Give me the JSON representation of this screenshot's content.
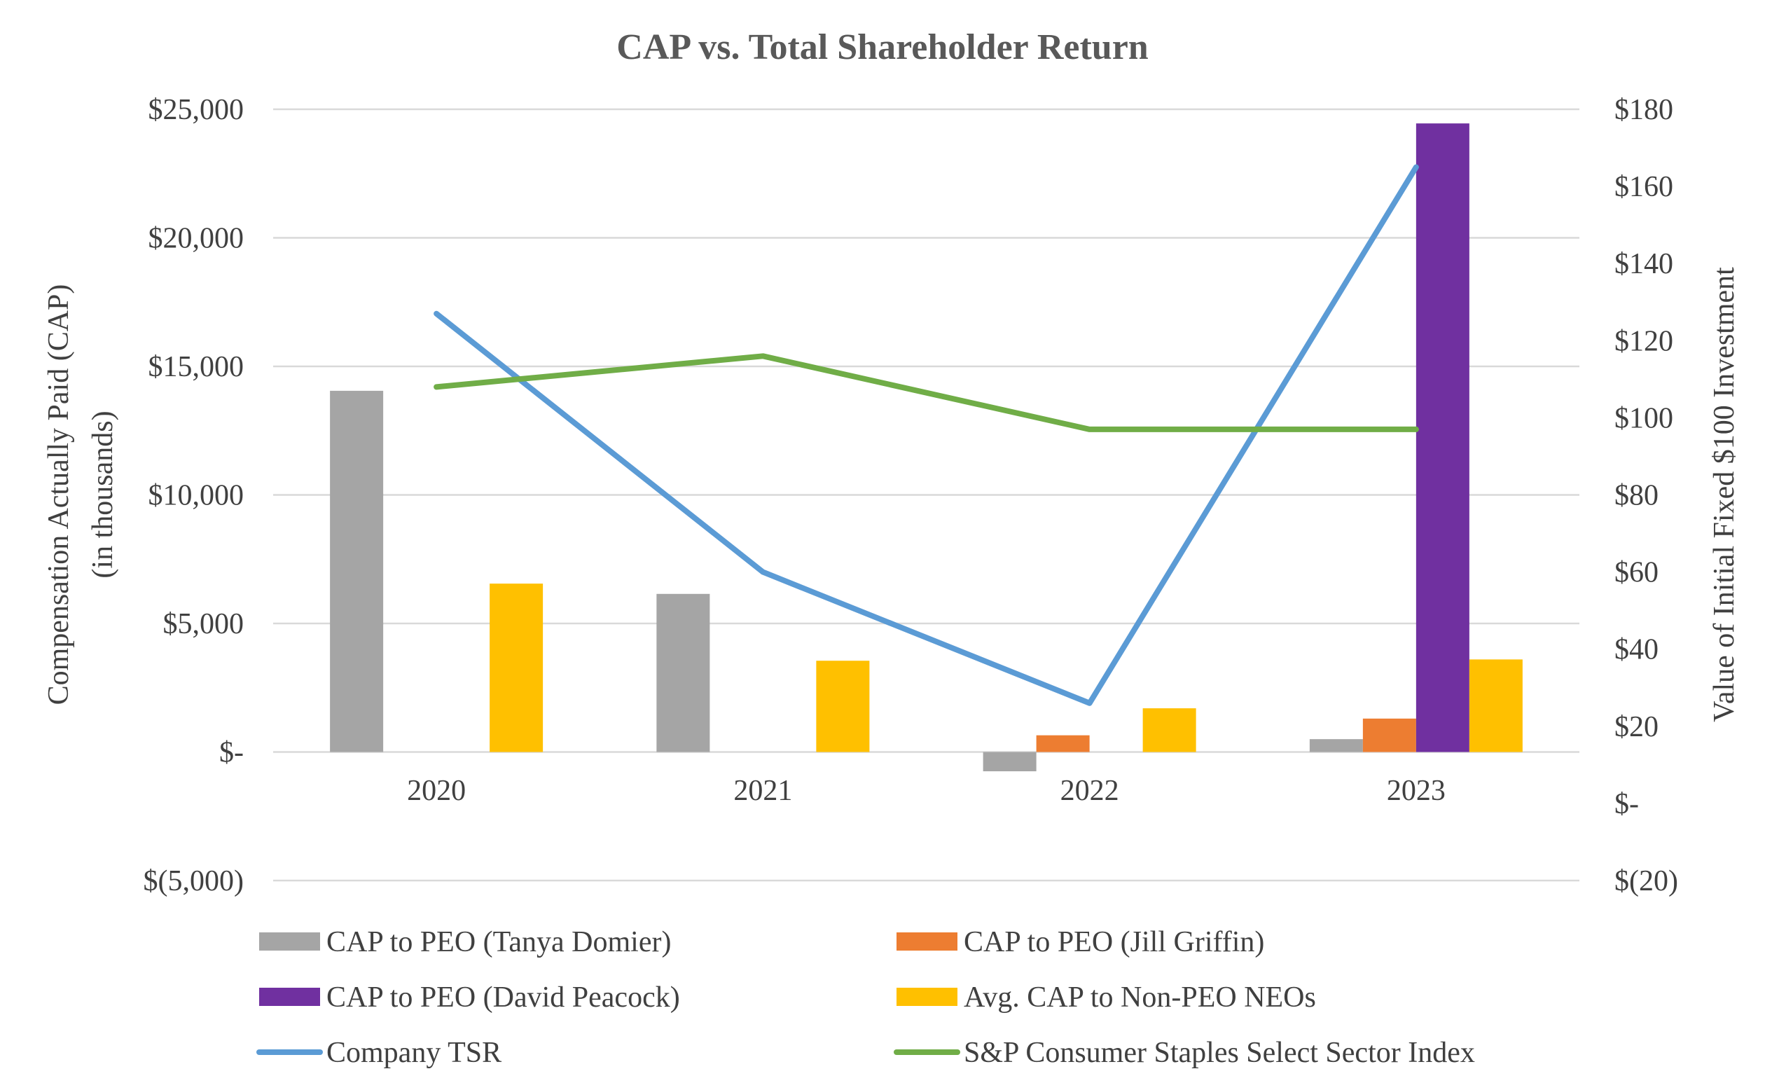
{
  "chart_data": {
    "type": "bar",
    "title": "CAP vs. Total Shareholder Return",
    "categories": [
      "2020",
      "2021",
      "2022",
      "2023"
    ],
    "ylabel": "Compensation Actually Paid (CAP)",
    "ylabel_sub": "(in thousands)",
    "y2label": "Value of Initial Fixed $100 Investment",
    "ylim": [
      -5000,
      25000
    ],
    "y2lim": [
      -20,
      180
    ],
    "y_ticks": [
      {
        "value": 25000,
        "label": "$25,000"
      },
      {
        "value": 20000,
        "label": "$20,000"
      },
      {
        "value": 15000,
        "label": "$15,000"
      },
      {
        "value": 10000,
        "label": "$10,000"
      },
      {
        "value": 5000,
        "label": "$5,000"
      },
      {
        "value": 0,
        "label": "$-"
      },
      {
        "value": -5000,
        "label": "$(5,000)"
      }
    ],
    "y2_ticks": [
      {
        "value": 180,
        "label": "$180"
      },
      {
        "value": 160,
        "label": "$160"
      },
      {
        "value": 140,
        "label": "$140"
      },
      {
        "value": 120,
        "label": "$120"
      },
      {
        "value": 100,
        "label": "$100"
      },
      {
        "value": 80,
        "label": "$80"
      },
      {
        "value": 60,
        "label": "$60"
      },
      {
        "value": 40,
        "label": "$40"
      },
      {
        "value": 20,
        "label": "$20"
      },
      {
        "value": 0,
        "label": "$-"
      },
      {
        "value": -20,
        "label": "$(20)"
      }
    ],
    "grid": true,
    "legend_position": "bottom",
    "bar_series": [
      {
        "name": "CAP to PEO (Tanya Domier)",
        "color": "#a5a5a5",
        "values": [
          14050,
          6150,
          -750,
          500
        ]
      },
      {
        "name": "CAP to PEO (Jill Griffin)",
        "color": "#ed7d31",
        "values": [
          null,
          null,
          650,
          1300
        ]
      },
      {
        "name": "CAP to PEO (David Peacock)",
        "color": "#7030a0",
        "values": [
          null,
          null,
          null,
          24450
        ]
      },
      {
        "name": "Avg. CAP to Non-PEO NEOs",
        "color": "#ffc000",
        "values": [
          6550,
          3550,
          1700,
          3600
        ]
      }
    ],
    "line_series": [
      {
        "name": "Company TSR",
        "color": "#5b9bd5",
        "axis": "right",
        "values": [
          127,
          60,
          26,
          165
        ]
      },
      {
        "name": "S&P Consumer Staples Select Sector Index",
        "color": "#70ad47",
        "axis": "right",
        "values": [
          108,
          116,
          97,
          97
        ]
      }
    ]
  }
}
